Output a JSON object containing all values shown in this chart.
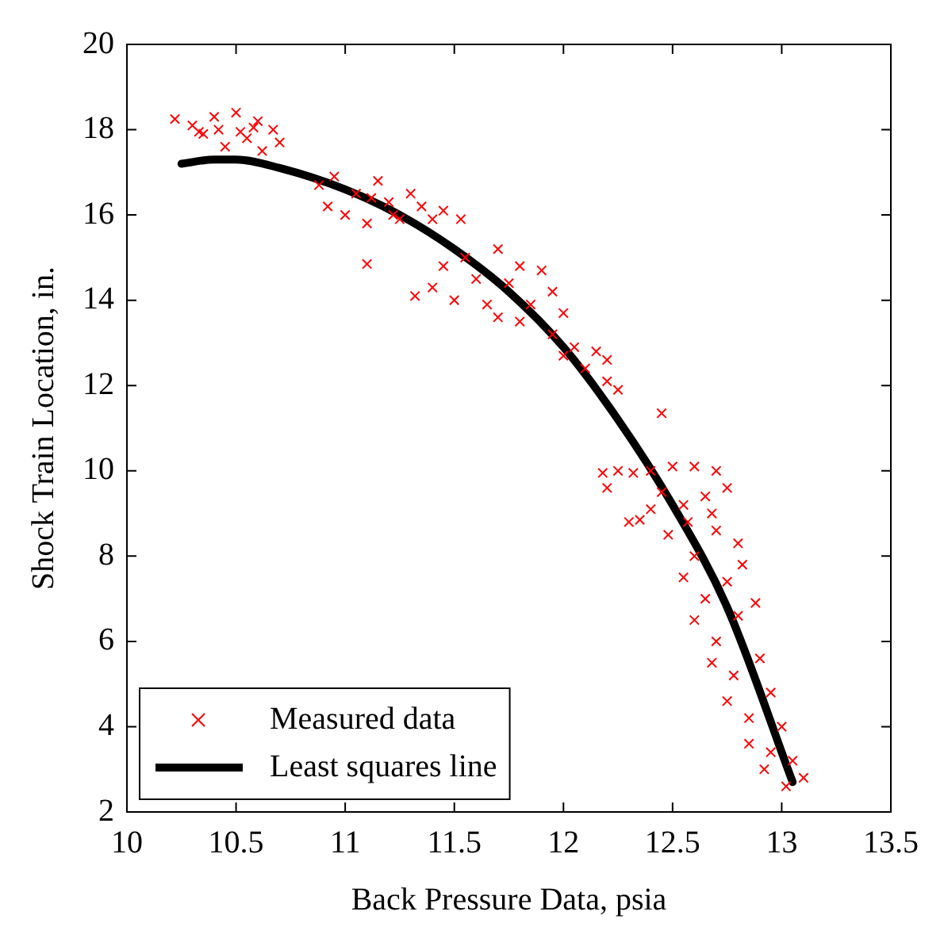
{
  "chart_data": {
    "type": "scatter",
    "xlabel": "Back Pressure Data, psia",
    "ylabel": "Shock Train Location, in.",
    "xlim": [
      10,
      13.5
    ],
    "xticks": [
      10,
      10.5,
      11,
      11.5,
      12,
      12.5,
      13,
      13.5
    ],
    "ylim": [
      2,
      20
    ],
    "yticks": [
      2,
      4,
      6,
      8,
      10,
      12,
      14,
      16,
      18,
      20
    ],
    "grid": false,
    "legend": "bottom left",
    "series": [
      {
        "name": "Measured data",
        "marker": "cross",
        "color": "#ff0000",
        "x": [
          10.22,
          10.3,
          10.35,
          10.4,
          10.45,
          10.5,
          10.55,
          10.6,
          10.62,
          10.67,
          10.7,
          10.42,
          10.52,
          10.58,
          10.33,
          10.88,
          10.92,
          10.95,
          11.0,
          11.05,
          11.1,
          11.15,
          11.2,
          11.25,
          11.3,
          11.35,
          11.4,
          11.45,
          11.53,
          11.12,
          11.22,
          11.1,
          11.4,
          11.45,
          11.5,
          11.55,
          11.6,
          11.65,
          11.7,
          11.75,
          11.8,
          11.85,
          11.9,
          11.95,
          12.0,
          11.95,
          12.05,
          12.1,
          12.15,
          12.2,
          12.25,
          12.0,
          11.8,
          12.2,
          11.32,
          11.7,
          12.45,
          12.18,
          12.25,
          12.32,
          12.4,
          12.2,
          12.3,
          12.35,
          12.5,
          12.6,
          12.7,
          12.45,
          12.55,
          12.65,
          12.75,
          12.4,
          12.48,
          12.6,
          12.7,
          12.8,
          12.55,
          12.65,
          12.75,
          12.82,
          12.6,
          12.7,
          12.8,
          12.88,
          12.68,
          12.78,
          12.9,
          12.75,
          12.85,
          12.95,
          12.85,
          12.95,
          13.0,
          12.92,
          13.05,
          13.1,
          13.02,
          12.57,
          12.68
        ],
        "values": [
          18.25,
          18.1,
          17.9,
          18.3,
          17.6,
          18.4,
          17.8,
          18.2,
          17.5,
          18.0,
          17.7,
          18.0,
          17.95,
          18.05,
          17.95,
          16.7,
          16.2,
          16.9,
          16.0,
          16.5,
          15.8,
          16.8,
          16.3,
          15.9,
          16.5,
          16.2,
          15.9,
          16.1,
          15.9,
          16.4,
          16.0,
          14.85,
          14.3,
          14.8,
          14.0,
          15.0,
          14.5,
          13.9,
          15.2,
          14.4,
          14.8,
          13.9,
          14.7,
          14.2,
          13.7,
          13.2,
          12.9,
          12.4,
          12.8,
          12.1,
          11.9,
          12.7,
          13.5,
          12.6,
          14.1,
          13.6,
          11.35,
          9.95,
          10.0,
          9.95,
          10.0,
          9.6,
          8.8,
          8.85,
          10.1,
          10.1,
          10.0,
          9.5,
          9.2,
          9.4,
          9.6,
          9.1,
          8.5,
          8.0,
          8.6,
          8.3,
          7.5,
          7.0,
          7.4,
          7.8,
          6.5,
          6.0,
          6.6,
          6.9,
          5.5,
          5.2,
          5.6,
          4.6,
          4.2,
          4.8,
          3.6,
          3.4,
          4.0,
          3.0,
          3.2,
          2.8,
          2.6,
          8.8,
          9.0
        ]
      },
      {
        "name": "Least squares line",
        "type": "line",
        "marker": "none",
        "line_style": "solid",
        "color": "#000000",
        "x": [
          10.25,
          10.4,
          10.5,
          10.7,
          11.0,
          11.25,
          11.5,
          11.75,
          12.0,
          12.25,
          12.5,
          12.75,
          13.05
        ],
        "values": [
          17.2,
          17.3,
          17.3,
          17.1,
          16.6,
          16.0,
          15.2,
          14.2,
          12.9,
          11.2,
          9.2,
          6.8,
          2.7
        ]
      }
    ]
  }
}
